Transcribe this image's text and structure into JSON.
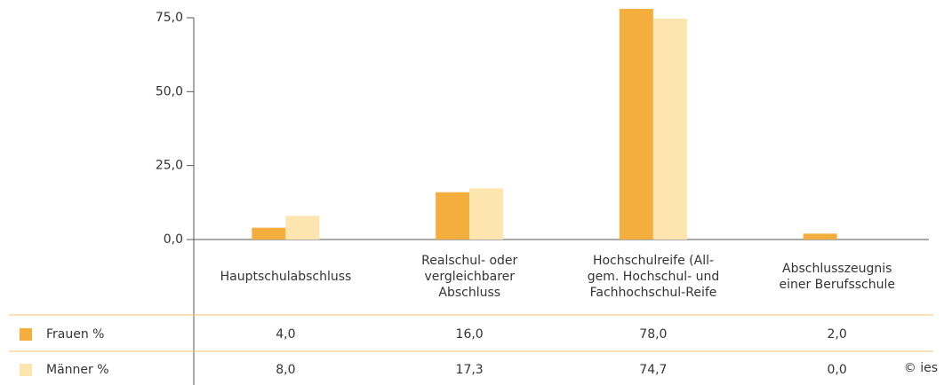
{
  "chart_data": {
    "type": "bar",
    "categories": [
      "Hauptschulabschluss",
      "Realschul- oder\nvergleichbarer\nAbschluss",
      "Hochschulreife (All-\ngem. Hochschul- und\nFachhochschul-Reife",
      "Abschlusszeugnis\neiner Berufsschule"
    ],
    "series": [
      {
        "name": "Frauen %",
        "color": "#f4ae3d",
        "values": [
          4.0,
          16.0,
          78.0,
          2.0
        ],
        "value_labels": [
          "4,0",
          "16,0",
          "78,0",
          "2,0"
        ]
      },
      {
        "name": "Männer %",
        "color": "#fde5b0",
        "values": [
          8.0,
          17.3,
          74.7,
          0.0
        ],
        "value_labels": [
          "8,0",
          "17,3",
          "74,7",
          "0,0"
        ]
      }
    ],
    "ylim": [
      0,
      75
    ],
    "yticks": [
      {
        "value": 0,
        "label": "0,0"
      },
      {
        "value": 25,
        "label": "25,0"
      },
      {
        "value": 50,
        "label": "50,0"
      },
      {
        "value": 75,
        "label": "75,0"
      }
    ],
    "grid": false,
    "credit": "© ies"
  }
}
